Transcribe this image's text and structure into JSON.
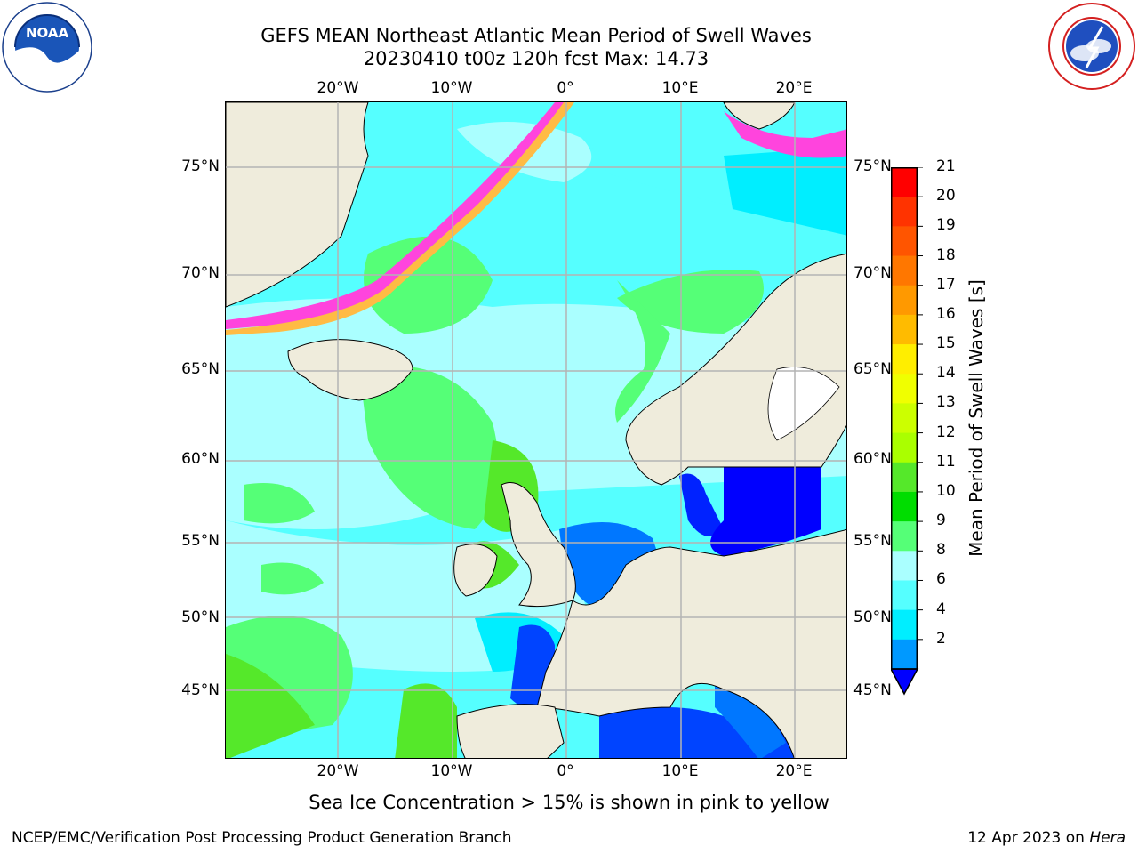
{
  "title": {
    "line1": "GEFS MEAN Northeast Atlantic Mean Period of Swell Waves",
    "line2": "20230410 t00z 120h fcst   Max: 14.73"
  },
  "logos": {
    "left": "NOAA",
    "right": "NATIONAL WEATHER SERVICE"
  },
  "map": {
    "lon_labels": [
      "20°W",
      "10°W",
      "0°",
      "10°E",
      "20°E"
    ],
    "lat_labels": [
      "75°N",
      "70°N",
      "65°N",
      "60°N",
      "55°N",
      "50°N",
      "45°N"
    ],
    "colors": {
      "land": "#efecdc",
      "grid": "#b4b4b4",
      "coast": "#000000"
    }
  },
  "colorbar": {
    "label": "Mean Period of Swell Waves [s]",
    "ticks": [
      "21",
      "20",
      "19",
      "18",
      "17",
      "16",
      "15",
      "14",
      "13",
      "12",
      "11",
      "10",
      "9",
      "8",
      "6",
      "4",
      "2"
    ],
    "colors_top_to_bottom": [
      "#ff0000",
      "#ff3300",
      "#ff5500",
      "#ff7700",
      "#ff9900",
      "#ffbb00",
      "#ffee00",
      "#f0ff00",
      "#ccff00",
      "#aaff00",
      "#55e82a",
      "#00dd00",
      "#55ff77",
      "#aaffff",
      "#55ffff",
      "#00eeff",
      "#0099ff"
    ],
    "under_color": "#0000ff"
  },
  "note": "Sea Ice Concentration > 15% is shown in pink to yellow",
  "footer": {
    "left": "NCEP/EMC/Verification Post Processing Product Generation Branch",
    "date": "12 Apr 2023 on",
    "machine": "Hera"
  }
}
